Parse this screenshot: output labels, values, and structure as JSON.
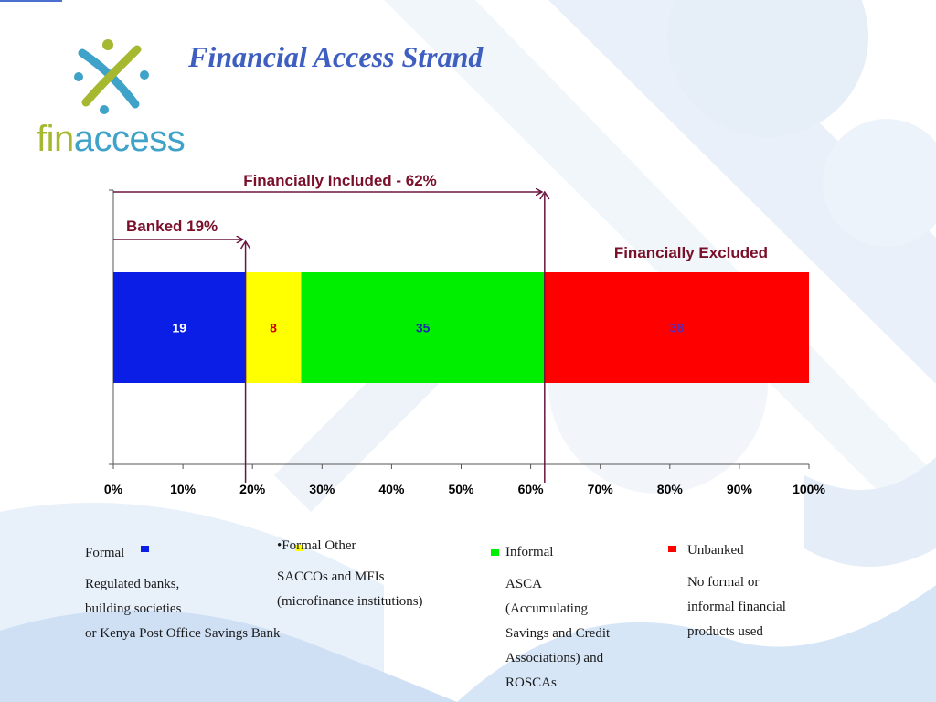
{
  "title": "Financial Access Strand",
  "logo": {
    "text_fin": "fin",
    "text_access": "access"
  },
  "chart_data": {
    "type": "bar",
    "orientation": "horizontal",
    "stacked": true,
    "series": [
      {
        "name": "Formal",
        "value": 19,
        "label": "19",
        "color": "#0a1ee6",
        "label_color": "#ffffff"
      },
      {
        "name": "Formal Other",
        "value": 8,
        "label": "8",
        "color": "#ffff00",
        "label_color": "#cc0000"
      },
      {
        "name": "Informal",
        "value": 35,
        "label": "35",
        "color": "#00ee00",
        "label_color": "#1a2aa8"
      },
      {
        "name": "Unbanked",
        "value": 38,
        "label": "38",
        "color": "#ff0000",
        "label_color": "#5a2ab8"
      }
    ],
    "xlim": [
      0,
      100
    ],
    "x_ticks": [
      "0%",
      "10%",
      "20%",
      "30%",
      "40%",
      "50%",
      "60%",
      "70%",
      "80%",
      "90%",
      "100%"
    ],
    "annotations": {
      "included": {
        "text": "Financially Included - 62%",
        "value": 62
      },
      "banked": {
        "text": "Banked 19%",
        "value": 19
      },
      "excluded": {
        "text": "Financially Excluded"
      }
    },
    "legend_placement": "bottom"
  },
  "legend": [
    {
      "name": "Formal",
      "color": "#0a1ee6",
      "lines": [
        "Regulated banks,",
        "building societies",
        "or Kenya Post Office Savings Bank"
      ]
    },
    {
      "name": "•Formal Other",
      "color": "#ffff00",
      "lines": [
        "SACCOs and MFIs",
        "(microfinance institutions)"
      ]
    },
    {
      "name": "Informal",
      "color": "#00ee00",
      "lines": [
        "ASCA",
        "(Accumulating",
        "Savings and Credit",
        "Associations) and",
        "ROSCAs"
      ]
    },
    {
      "name": "Unbanked",
      "color": "#ff0000",
      "lines": [
        "No formal or",
        "informal financial",
        "products used"
      ]
    }
  ]
}
